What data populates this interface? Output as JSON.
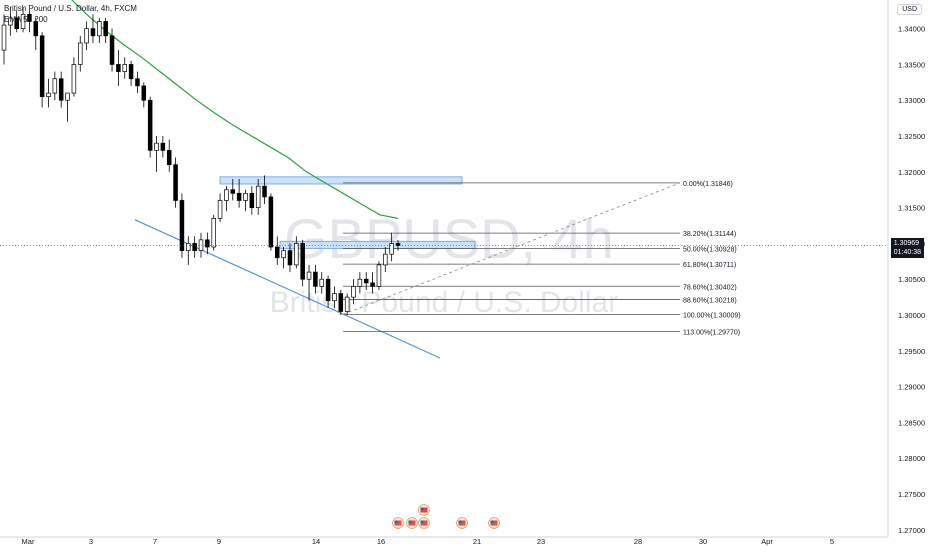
{
  "header": {
    "symbol_line": "British Pound / U.S. Dollar, 4h, FXCM",
    "indicator_line": "EMA 50 200"
  },
  "watermark": {
    "ticker": "GBPUSD, 4h",
    "name": "British Pound / U.S. Dollar"
  },
  "currency_badge": "USD",
  "last_price": {
    "value": "1.30969",
    "countdown": "01:40:38"
  },
  "colors": {
    "up_candle": "#ffffff",
    "down_candle": "#000000",
    "ema": "#2e9e3f",
    "zone_fill": "#bbd6f5",
    "zone_border": "#6a9fe0",
    "trendline": "#5b8fd9",
    "fib_line": "#555555"
  },
  "chart_data": {
    "type": "candlestick",
    "symbol": "GBPUSD",
    "timeframe": "4h",
    "y_axis": {
      "ticks": [
        "1.34000",
        "1.33500",
        "1.33000",
        "1.32500",
        "1.32000",
        "1.31500",
        "1.31000",
        "1.30500",
        "1.30000",
        "1.29500",
        "1.29000",
        "1.28500",
        "1.28000",
        "1.27500",
        "1.27000"
      ],
      "ylim": [
        1.269,
        1.344
      ]
    },
    "x_axis": {
      "ticks": [
        "Mar",
        "3",
        "7",
        "9",
        "14",
        "16",
        "21",
        "23",
        "28",
        "30",
        "Apr",
        "5"
      ]
    },
    "candles": [
      [
        1.337,
        1.342,
        1.335,
        1.3405
      ],
      [
        1.3405,
        1.343,
        1.339,
        1.3415
      ],
      [
        1.3415,
        1.3425,
        1.3395,
        1.34
      ],
      [
        1.34,
        1.343,
        1.3395,
        1.342
      ],
      [
        1.342,
        1.3425,
        1.3395,
        1.341
      ],
      [
        1.341,
        1.3415,
        1.337,
        1.339
      ],
      [
        1.339,
        1.3395,
        1.329,
        1.3305
      ],
      [
        1.3305,
        1.333,
        1.329,
        1.331
      ],
      [
        1.331,
        1.334,
        1.33,
        1.333
      ],
      [
        1.333,
        1.334,
        1.329,
        1.33
      ],
      [
        1.33,
        1.331,
        1.327,
        1.331
      ],
      [
        1.331,
        1.336,
        1.3305,
        1.335
      ],
      [
        1.335,
        1.339,
        1.334,
        1.338
      ],
      [
        1.338,
        1.341,
        1.337,
        1.34
      ],
      [
        1.34,
        1.342,
        1.338,
        1.339
      ],
      [
        1.339,
        1.3415,
        1.338,
        1.341
      ],
      [
        1.341,
        1.3415,
        1.338,
        1.339
      ],
      [
        1.339,
        1.34,
        1.334,
        1.335
      ],
      [
        1.335,
        1.337,
        1.332,
        1.334
      ],
      [
        1.334,
        1.336,
        1.333,
        1.335
      ],
      [
        1.335,
        1.3355,
        1.332,
        1.333
      ],
      [
        1.333,
        1.334,
        1.331,
        1.332
      ],
      [
        1.332,
        1.3325,
        1.329,
        1.33
      ],
      [
        1.33,
        1.3305,
        1.322,
        1.323
      ],
      [
        1.323,
        1.325,
        1.32,
        1.324
      ],
      [
        1.324,
        1.325,
        1.322,
        1.323
      ],
      [
        1.323,
        1.3245,
        1.32,
        1.321
      ],
      [
        1.321,
        1.322,
        1.315,
        1.316
      ],
      [
        1.316,
        1.317,
        1.308,
        1.309
      ],
      [
        1.309,
        1.311,
        1.307,
        1.31
      ],
      [
        1.31,
        1.311,
        1.308,
        1.309
      ],
      [
        1.309,
        1.3115,
        1.308,
        1.3105
      ],
      [
        1.3105,
        1.3115,
        1.3085,
        1.3095
      ],
      [
        1.3095,
        1.314,
        1.309,
        1.3135
      ],
      [
        1.3135,
        1.317,
        1.313,
        1.316
      ],
      [
        1.316,
        1.318,
        1.3145,
        1.3175
      ],
      [
        1.3175,
        1.319,
        1.316,
        1.317
      ],
      [
        1.317,
        1.319,
        1.315,
        1.316
      ],
      [
        1.316,
        1.3175,
        1.3145,
        1.317
      ],
      [
        1.317,
        1.318,
        1.314,
        1.315
      ],
      [
        1.315,
        1.319,
        1.314,
        1.318
      ],
      [
        1.318,
        1.3195,
        1.3155,
        1.3165
      ],
      [
        1.3165,
        1.317,
        1.309,
        1.3095
      ],
      [
        1.3095,
        1.311,
        1.307,
        1.308
      ],
      [
        1.308,
        1.3095,
        1.3065,
        1.309
      ],
      [
        1.309,
        1.31,
        1.306,
        1.307
      ],
      [
        1.307,
        1.311,
        1.3065,
        1.31
      ],
      [
        1.31,
        1.3105,
        1.304,
        1.305
      ],
      [
        1.305,
        1.307,
        1.302,
        1.306
      ],
      [
        1.306,
        1.307,
        1.303,
        1.304
      ],
      [
        1.304,
        1.306,
        1.303,
        1.305
      ],
      [
        1.305,
        1.3055,
        1.301,
        1.302
      ],
      [
        1.302,
        1.304,
        1.301,
        1.303
      ],
      [
        1.303,
        1.3035,
        1.3,
        1.3005
      ],
      [
        1.3005,
        1.303,
        1.3,
        1.3025
      ],
      [
        1.3025,
        1.305,
        1.3015,
        1.304
      ],
      [
        1.304,
        1.306,
        1.303,
        1.305
      ],
      [
        1.305,
        1.306,
        1.3035,
        1.3045
      ],
      [
        1.3045,
        1.306,
        1.303,
        1.304
      ],
      [
        1.304,
        1.3075,
        1.3035,
        1.307
      ],
      [
        1.307,
        1.3095,
        1.306,
        1.3085
      ],
      [
        1.3085,
        1.3115,
        1.3075,
        1.31
      ],
      [
        1.31,
        1.3105,
        1.309,
        1.3097
      ]
    ],
    "ema_50": [
      1.347,
      1.3445,
      1.342,
      1.3398,
      1.3378,
      1.336,
      1.334,
      1.332,
      1.33,
      1.3282,
      1.3265,
      1.325,
      1.3235,
      1.322,
      1.32,
      1.3185,
      1.317,
      1.3155,
      1.314,
      1.3135
    ],
    "horizontal_zones": [
      {
        "top": 1.3193,
        "bottom": 1.3183
      },
      {
        "top": 1.3103,
        "bottom": 1.3093
      }
    ],
    "trendline": {
      "from": 1.3133,
      "to": 1.294
    },
    "fibonacci": [
      {
        "label": "0.00%(1.31846)",
        "price": 1.31846
      },
      {
        "label": "38.20%(1.31144)",
        "price": 1.31144
      },
      {
        "label": "50.00%(1.30928)",
        "price": 1.30928
      },
      {
        "label": "61.80%(1.30711)",
        "price": 1.30711
      },
      {
        "label": "78.60%(1.30402)",
        "price": 1.30402
      },
      {
        "label": "88.60%(1.30218)",
        "price": 1.30218
      },
      {
        "label": "100.00%(1.30009)",
        "price": 1.30009
      },
      {
        "label": "113.00%(1.29770)",
        "price": 1.2977
      }
    ],
    "last_price_value": 1.30969,
    "event_icons": [
      "us-flag-icon",
      "us-flag-icon",
      "uk-flag-icon",
      "us-flag-icon",
      "us-flag-icon",
      "us-flag-icon"
    ]
  }
}
